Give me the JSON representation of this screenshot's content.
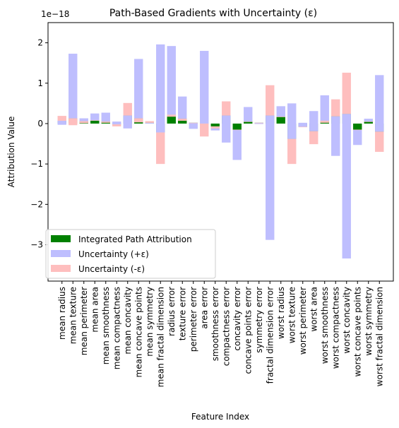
{
  "chart_data": {
    "type": "bar",
    "title": "Path-Based Gradients with Uncertainty (ε)",
    "xlabel": "Feature Index",
    "ylabel": "Attribution Value",
    "y_scale_label": "1e−18",
    "ylim": [
      -3.9,
      2.5
    ],
    "yticks": [
      -3,
      -2,
      -1,
      0,
      1,
      2
    ],
    "ytick_labels": [
      "−3",
      "−2",
      "−1",
      "0",
      "1",
      "2"
    ],
    "grid": false,
    "legend_position": "lower-left",
    "categories": [
      "mean radius",
      "mean texture",
      "mean perimeter",
      "mean area",
      "mean smoothness",
      "mean compactness",
      "mean concavity",
      "mean concave points",
      "mean symmetry",
      "mean fractal dimension",
      "radius error",
      "texture error",
      "perimeter error",
      "area error",
      "smoothness error",
      "compactness error",
      "concavity error",
      "concave points error",
      "symmetry error",
      "fractal dimension error",
      "worst radius",
      "worst texture",
      "worst perimeter",
      "worst area",
      "worst smoothness",
      "worst compactness",
      "worst concavity",
      "worst concave points",
      "worst symmetry",
      "worst fractal dimension"
    ],
    "series": [
      {
        "name": "Integrated Path Attribution",
        "color": "#008000",
        "values": [
          0.07,
          0.13,
          0.06,
          0.08,
          0.05,
          -0.02,
          0.2,
          0.13,
          0.02,
          -0.22,
          0.22,
          0.12,
          0.02,
          0.0,
          -0.07,
          0.2,
          -0.15,
          0.05,
          0.02,
          0.2,
          0.17,
          -0.38,
          -0.08,
          -0.19,
          0.07,
          0.18,
          0.24,
          -0.15,
          0.05,
          -0.2
        ]
      },
      {
        "name": "Uncertainty (+ε)",
        "color": "#bebefe",
        "values": [
          -0.1,
          1.6,
          0.07,
          0.17,
          0.22,
          0.07,
          -0.32,
          1.47,
          -0.02,
          2.18,
          1.7,
          0.55,
          -0.15,
          1.8,
          -0.1,
          -0.67,
          -0.75,
          0.36,
          -0.03,
          -3.08,
          0.26,
          0.88,
          0.1,
          0.5,
          0.63,
          -0.98,
          -3.58,
          -0.38,
          0.07,
          1.4
        ]
      },
      {
        "name": "Uncertainty (-ε)",
        "color": "#febebe",
        "values": [
          0.12,
          -0.17,
          -0.05,
          -0.01,
          -0.03,
          -0.05,
          0.31,
          -0.1,
          0.04,
          -0.78,
          -0.05,
          -0.05,
          0.0,
          -0.32,
          -0.05,
          0.35,
          0.0,
          0.0,
          0.0,
          0.75,
          0.0,
          -0.62,
          0.0,
          -0.32,
          -0.05,
          0.42,
          1.02,
          0.0,
          0.0,
          -0.5
        ]
      }
    ]
  }
}
